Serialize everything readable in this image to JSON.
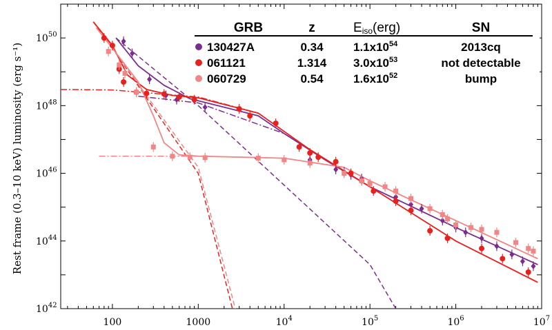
{
  "chart_data": {
    "type": "scatter",
    "title": "",
    "xlabel": "",
    "ylabel": "Rest frame (0.3–10 keV) luminosity (erg s⁻¹)",
    "xscale": "log",
    "yscale": "log",
    "xlim": [
      25,
      10000000
    ],
    "ylim": [
      1e+42,
      1e+51
    ],
    "x_ticks": [
      {
        "value": 100,
        "label": "100"
      },
      {
        "value": 1000,
        "label": "1000"
      },
      {
        "value": 10000,
        "base": "10",
        "exp": "4"
      },
      {
        "value": 100000,
        "base": "10",
        "exp": "5"
      },
      {
        "value": 1000000,
        "base": "10",
        "exp": "6"
      },
      {
        "value": 10000000,
        "base": "10",
        "exp": "7"
      }
    ],
    "y_ticks": [
      {
        "value": 1e+42,
        "base": "10",
        "exp": "42"
      },
      {
        "value": 1e+44,
        "base": "10",
        "exp": "44"
      },
      {
        "value": 1e+46,
        "base": "10",
        "exp": "46"
      },
      {
        "value": 1e+48,
        "base": "10",
        "exp": "48"
      },
      {
        "value": 1e+50,
        "base": "10",
        "exp": "50"
      }
    ],
    "legend": {
      "placement": "top-right",
      "headers": {
        "grb": "GRB",
        "z": "z",
        "eiso_main": "E",
        "eiso_sub": "iso",
        "eiso_unit": "(erg)",
        "sn": "SN"
      },
      "rows": [
        {
          "grb": "130427A",
          "z": "0.34",
          "eiso_mant": "1.1x10",
          "eiso_exp": "54",
          "sn": "2013cq",
          "color": "#7b2d8e"
        },
        {
          "grb": "061121",
          "z": "1.314",
          "eiso_mant": "3.0x10",
          "eiso_exp": "53",
          "sn": "not detectable",
          "color": "#e8211e"
        },
        {
          "grb": "060729",
          "z": "0.54",
          "eiso_mant": "1.6x10",
          "eiso_exp": "52",
          "sn": "bump",
          "color": "#f28585"
        }
      ]
    },
    "series": [
      {
        "grb": "130427A",
        "color": "#7b2d8e",
        "marker": "diamond",
        "points": [
          [
            135,
            8e+49
          ],
          [
            170,
            3.5e+49
          ],
          [
            270,
            6e+48
          ],
          [
            420,
            2e+48
          ],
          [
            560,
            1.5e+48
          ],
          [
            1200,
            9e+47
          ],
          [
            20000,
            2.5e+46
          ],
          [
            40000,
            1.3e+46
          ],
          [
            50000,
            1.1e+46
          ],
          [
            60000,
            9e+45
          ],
          [
            80000,
            7e+45
          ],
          [
            200000,
            2e+45
          ],
          [
            300000,
            1.2e+45
          ],
          [
            400000,
            9e+44
          ],
          [
            700000,
            4e+44
          ],
          [
            1000000,
            2.5e+44
          ],
          [
            1300000,
            1.8e+44
          ],
          [
            2000000,
            1.2e+44
          ],
          [
            3000000,
            7e+43
          ],
          [
            4500000,
            4e+43
          ],
          [
            6000000,
            2.5e+43
          ],
          [
            8000000,
            1.8e+43
          ]
        ],
        "fit_components": [
          {
            "style": "dashed",
            "points": [
              [
                110,
                1e+50
              ],
              [
                1000,
                1e+48
              ],
              [
                100000,
                2e+43
              ],
              [
                200000,
                1e+42
              ]
            ]
          },
          {
            "style": "dashdot",
            "points": [
              [
                200,
                1.9e+48
              ],
              [
                1000,
                1.2e+48
              ],
              [
                10000,
                1.5e+47
              ],
              [
                100000,
                4e+45
              ],
              [
                1000000,
                2.5e+44
              ],
              [
                9000000,
                2e+43
              ]
            ]
          }
        ],
        "fit": [
          [
            110,
            1e+50
          ],
          [
            200,
            1.5e+49
          ],
          [
            400,
            4e+48
          ],
          [
            800,
            1.6e+48
          ],
          [
            2000,
            9e+47
          ],
          [
            5000,
            5e+47
          ],
          [
            10000,
            1.5e+47
          ],
          [
            30000,
            2.5e+46
          ],
          [
            100000,
            4e+45
          ],
          [
            1000000,
            2.5e+44
          ],
          [
            9000000,
            2e+43
          ]
        ]
      },
      {
        "grb": "061121",
        "color": "#e8211e",
        "marker": "circle",
        "points": [
          [
            80,
            1e+50
          ],
          [
            100,
            6e+49
          ],
          [
            120,
            1.2e+49
          ],
          [
            135,
            5e+48
          ],
          [
            190,
            2.5e+48
          ],
          [
            250,
            2.3e+48
          ],
          [
            400,
            2.2e+48
          ],
          [
            600,
            1.8e+48
          ],
          [
            900,
            1.5e+48
          ],
          [
            3000,
            8e+47
          ],
          [
            4000,
            5e+47
          ],
          [
            8000,
            3e+47
          ],
          [
            15000,
            6e+46
          ],
          [
            20000,
            4e+46
          ],
          [
            25000,
            3e+46
          ],
          [
            40000,
            2.2e+46
          ],
          [
            60000,
            1e+46
          ],
          [
            80000,
            6e+45
          ],
          [
            110000,
            3e+45
          ],
          [
            200000,
            1.5e+45
          ],
          [
            300000,
            8e+44
          ],
          [
            500000,
            2e+44
          ],
          [
            800000,
            1.2e+44
          ],
          [
            2000000,
            6e+43
          ],
          [
            3500000,
            3e+43
          ],
          [
            7000000,
            1.2e+43
          ]
        ],
        "fit_components": [
          {
            "style": "dashed",
            "points": [
              [
                60,
                3e+50
              ],
              [
                100,
                5e+49
              ],
              [
                1000,
                1e+46
              ],
              [
                2500,
                1e+42
              ]
            ]
          },
          {
            "style": "dashdot",
            "points": [
              [
                25,
                3e+48
              ],
              [
                100,
                2.9e+48
              ],
              [
                1000,
                1.8e+48
              ],
              [
                5000,
                6e+47
              ],
              [
                20000,
                5e+46
              ],
              [
                100000,
                4e+45
              ],
              [
                1000000,
                1e+44
              ],
              [
                9000000,
                6e+42
              ]
            ]
          }
        ],
        "fit": [
          [
            60,
            3e+50
          ],
          [
            100,
            6e+49
          ],
          [
            150,
            8e+48
          ],
          [
            250,
            3e+48
          ],
          [
            500,
            2e+48
          ],
          [
            1000,
            1.7e+48
          ],
          [
            5000,
            6e+47
          ],
          [
            20000,
            5e+46
          ],
          [
            100000,
            4e+45
          ],
          [
            1000000,
            1e+44
          ],
          [
            9000000,
            6e+42
          ]
        ]
      },
      {
        "grb": "060729",
        "color": "#f28585",
        "marker": "square",
        "points": [
          [
            90,
            4e+49
          ],
          [
            120,
            1.6e+49
          ],
          [
            140,
            9e+48
          ],
          [
            190,
            2.5e+48
          ],
          [
            300,
            6e+46
          ],
          [
            500,
            3.2e+46
          ],
          [
            800,
            3e+46
          ],
          [
            1200,
            2.9e+46
          ],
          [
            5000,
            2.8e+46
          ],
          [
            10000,
            2.5e+46
          ],
          [
            20000,
            2e+46
          ],
          [
            50000,
            1e+46
          ],
          [
            80000,
            6e+45
          ],
          [
            100000,
            5e+45
          ],
          [
            150000,
            4e+45
          ],
          [
            200000,
            3e+45
          ],
          [
            300000,
            1.8e+45
          ],
          [
            500000,
            9e+44
          ],
          [
            700000,
            6e+44
          ],
          [
            800000,
            4.5e+44
          ],
          [
            1000000,
            3e+44
          ],
          [
            1500000,
            2.5e+44
          ],
          [
            2000000,
            2.2e+44
          ],
          [
            3000000,
            1.8e+44
          ],
          [
            5000000,
            9e+43
          ],
          [
            7000000,
            6e+43
          ],
          [
            8000000,
            5e+43
          ]
        ],
        "fit_components": [
          {
            "style": "dashed",
            "points": [
              [
                65,
                2e+50
              ],
              [
                100,
                5e+49
              ],
              [
                1000,
                1.5e+46
              ],
              [
                2700,
                1e+42
              ]
            ]
          },
          {
            "style": "dashdot",
            "points": [
              [
                70,
                3.2e+46
              ],
              [
                1000,
                3.2e+46
              ],
              [
                10000,
                2.8e+46
              ],
              [
                50000,
                1.5e+46
              ],
              [
                100000,
                6e+45
              ],
              [
                1000000,
                4e+44
              ],
              [
                9000000,
                3e+43
              ]
            ]
          }
        ],
        "fit": [
          [
            65,
            2e+50
          ],
          [
            100,
            5e+49
          ],
          [
            200,
            5e+48
          ],
          [
            300,
            5e+47
          ],
          [
            400,
            8e+46
          ],
          [
            600,
            3.5e+46
          ],
          [
            1000,
            3.2e+46
          ],
          [
            10000,
            2.8e+46
          ],
          [
            50000,
            1.5e+46
          ],
          [
            100000,
            6e+45
          ],
          [
            1000000,
            4e+44
          ],
          [
            9000000,
            3e+43
          ]
        ]
      }
    ]
  }
}
